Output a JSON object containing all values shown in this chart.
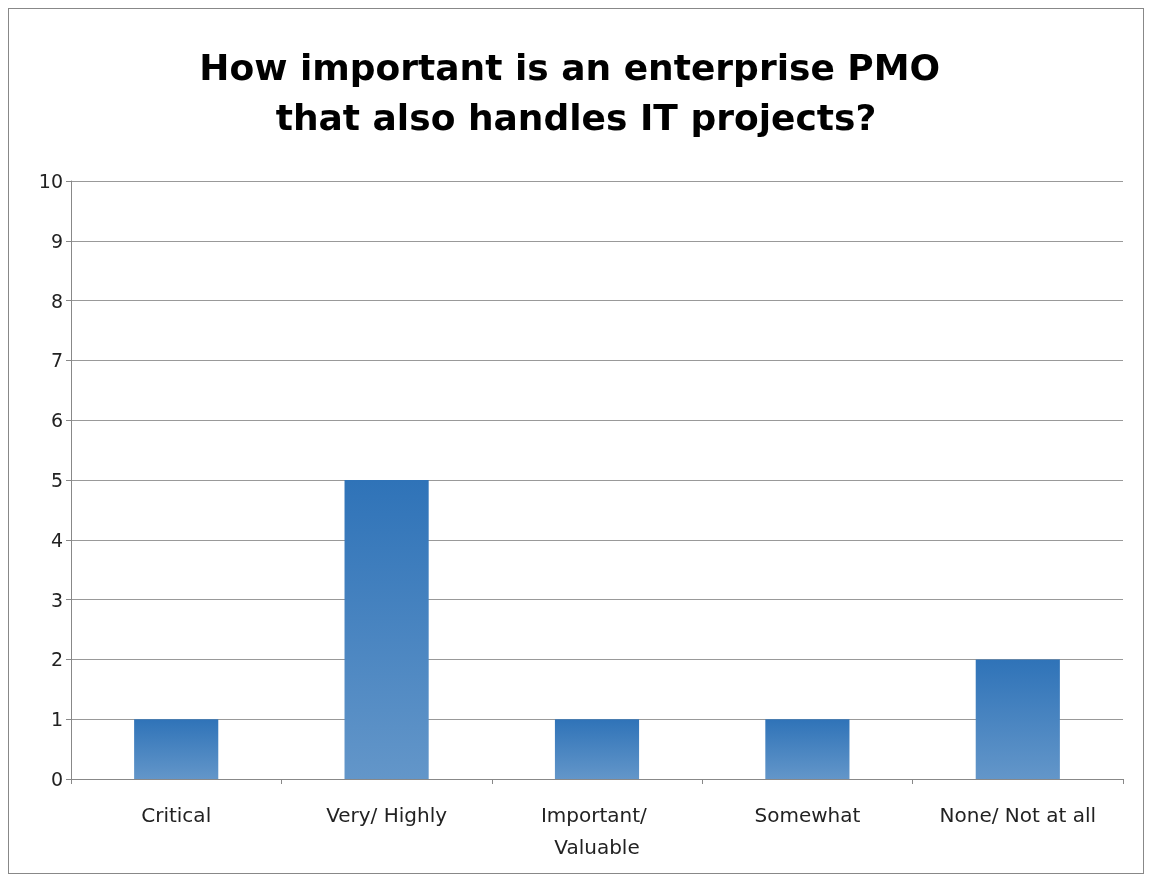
{
  "chart_data": {
    "type": "bar",
    "title": "How important is an enterprise PMO that also handles IT projects?",
    "categories": [
      "Critical",
      "Very/ Highly",
      "Important/ Valuable",
      "Somewhat",
      "None/ Not at all"
    ],
    "values": [
      1,
      5,
      1,
      1,
      2
    ],
    "color": "#2f73b8",
    "ylim": [
      0,
      10
    ],
    "yticks": [
      0,
      1,
      2,
      3,
      4,
      5,
      6,
      7,
      8,
      9,
      10
    ],
    "grid": "y",
    "legend": false
  }
}
